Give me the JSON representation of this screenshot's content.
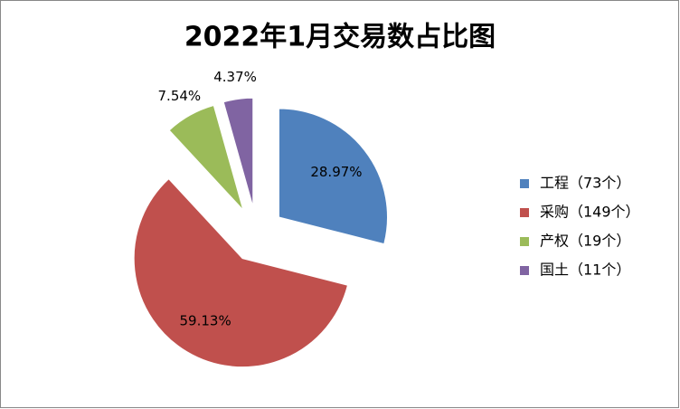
{
  "chart_data": {
    "type": "pie",
    "title": "2022年1月交易数占比图",
    "categories": [
      "工程（73个）",
      "采购（149个）",
      "产权（19个）",
      "国土（11个）"
    ],
    "values": [
      28.97,
      59.13,
      7.54,
      4.37
    ],
    "value_labels": [
      "28.97%",
      "59.13%",
      "7.54%",
      "4.37%"
    ],
    "colors": [
      "#4f81bd",
      "#c0504d",
      "#9bbb59",
      "#8064a2"
    ],
    "legend": "right"
  }
}
